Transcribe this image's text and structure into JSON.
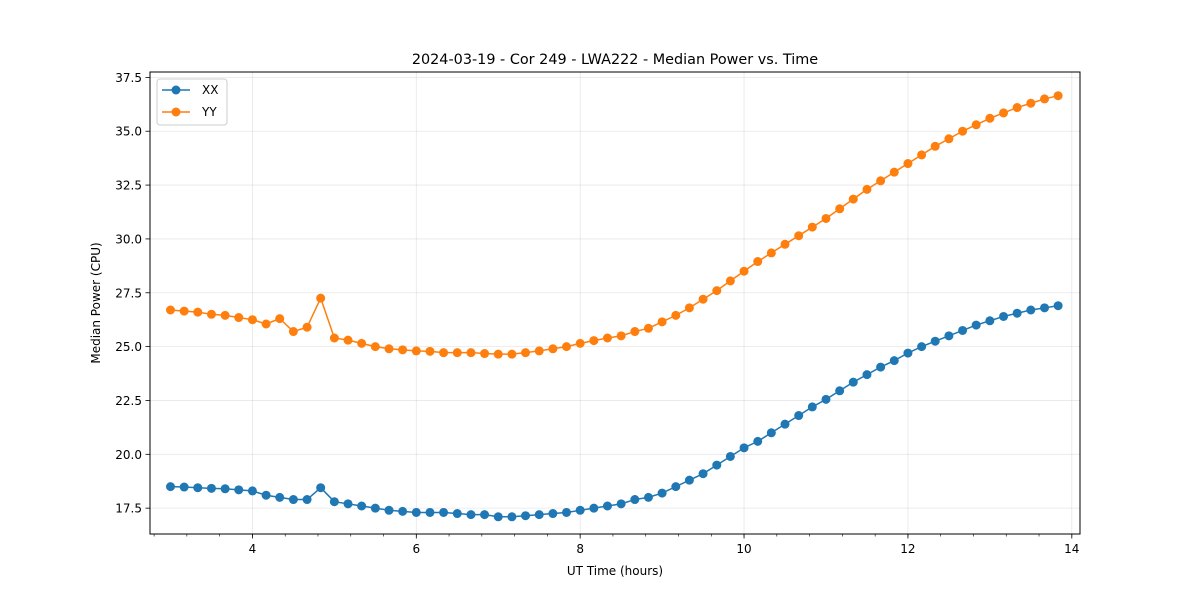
{
  "chart_data": {
    "type": "line",
    "title": "2024-03-19 - Cor 249 - LWA222 - Median Power vs. Time",
    "xlabel": "UT Time (hours)",
    "ylabel": "Median Power (CPU)",
    "xlim": [
      2.75,
      14.1
    ],
    "ylim": [
      16.3,
      37.75
    ],
    "xticks": [
      4,
      6,
      8,
      10,
      12,
      14
    ],
    "xtick_labels": [
      "4",
      "6",
      "8",
      "10",
      "12",
      "14"
    ],
    "yticks": [
      17.5,
      20.0,
      22.5,
      25.0,
      27.5,
      30.0,
      32.5,
      35.0,
      37.5
    ],
    "ytick_labels": [
      "17.5",
      "20.0",
      "22.5",
      "25.0",
      "27.5",
      "30.0",
      "32.5",
      "35.0",
      "37.5"
    ],
    "x_minor_step": 0.4,
    "grid": true,
    "legend_position": "upper-left",
    "x": [
      3.0,
      3.167,
      3.333,
      3.5,
      3.667,
      3.833,
      4.0,
      4.167,
      4.333,
      4.5,
      4.667,
      4.833,
      5.0,
      5.167,
      5.333,
      5.5,
      5.667,
      5.833,
      6.0,
      6.167,
      6.333,
      6.5,
      6.667,
      6.833,
      7.0,
      7.167,
      7.333,
      7.5,
      7.667,
      7.833,
      8.0,
      8.167,
      8.333,
      8.5,
      8.667,
      8.833,
      9.0,
      9.167,
      9.333,
      9.5,
      9.667,
      9.833,
      10.0,
      10.167,
      10.333,
      10.5,
      10.667,
      10.833,
      11.0,
      11.167,
      11.333,
      11.5,
      11.667,
      11.833,
      12.0,
      12.167,
      12.333,
      12.5,
      12.667,
      12.833,
      13.0,
      13.167,
      13.333,
      13.5,
      13.667,
      13.833
    ],
    "series": [
      {
        "name": "XX",
        "color": "#1f77b4",
        "values": [
          18.5,
          18.48,
          18.45,
          18.42,
          18.4,
          18.35,
          18.3,
          18.1,
          18.0,
          17.9,
          17.9,
          18.45,
          17.8,
          17.7,
          17.6,
          17.5,
          17.4,
          17.35,
          17.3,
          17.3,
          17.3,
          17.25,
          17.2,
          17.2,
          17.1,
          17.1,
          17.15,
          17.2,
          17.25,
          17.3,
          17.4,
          17.5,
          17.6,
          17.7,
          17.9,
          18.0,
          18.2,
          18.5,
          18.8,
          19.1,
          19.5,
          19.9,
          20.3,
          20.6,
          21.0,
          21.4,
          21.8,
          22.2,
          22.55,
          22.95,
          23.35,
          23.7,
          24.05,
          24.35,
          24.7,
          25.0,
          25.25,
          25.5,
          25.75,
          26.0,
          26.2,
          26.4,
          26.55,
          26.7,
          26.8,
          26.9
        ]
      },
      {
        "name": "YY",
        "color": "#ff7f0e",
        "values": [
          26.7,
          26.65,
          26.6,
          26.5,
          26.45,
          26.35,
          26.25,
          26.05,
          26.3,
          25.7,
          25.9,
          27.25,
          25.4,
          25.3,
          25.15,
          25.0,
          24.9,
          24.85,
          24.8,
          24.78,
          24.72,
          24.72,
          24.72,
          24.68,
          24.65,
          24.65,
          24.72,
          24.8,
          24.9,
          25.0,
          25.15,
          25.28,
          25.4,
          25.5,
          25.7,
          25.85,
          26.15,
          26.45,
          26.8,
          27.2,
          27.6,
          28.05,
          28.5,
          28.95,
          29.35,
          29.75,
          30.15,
          30.55,
          30.95,
          31.4,
          31.85,
          32.3,
          32.7,
          33.1,
          33.5,
          33.9,
          34.3,
          34.65,
          35.0,
          35.3,
          35.6,
          35.85,
          36.1,
          36.3,
          36.5,
          36.65
        ]
      }
    ]
  }
}
